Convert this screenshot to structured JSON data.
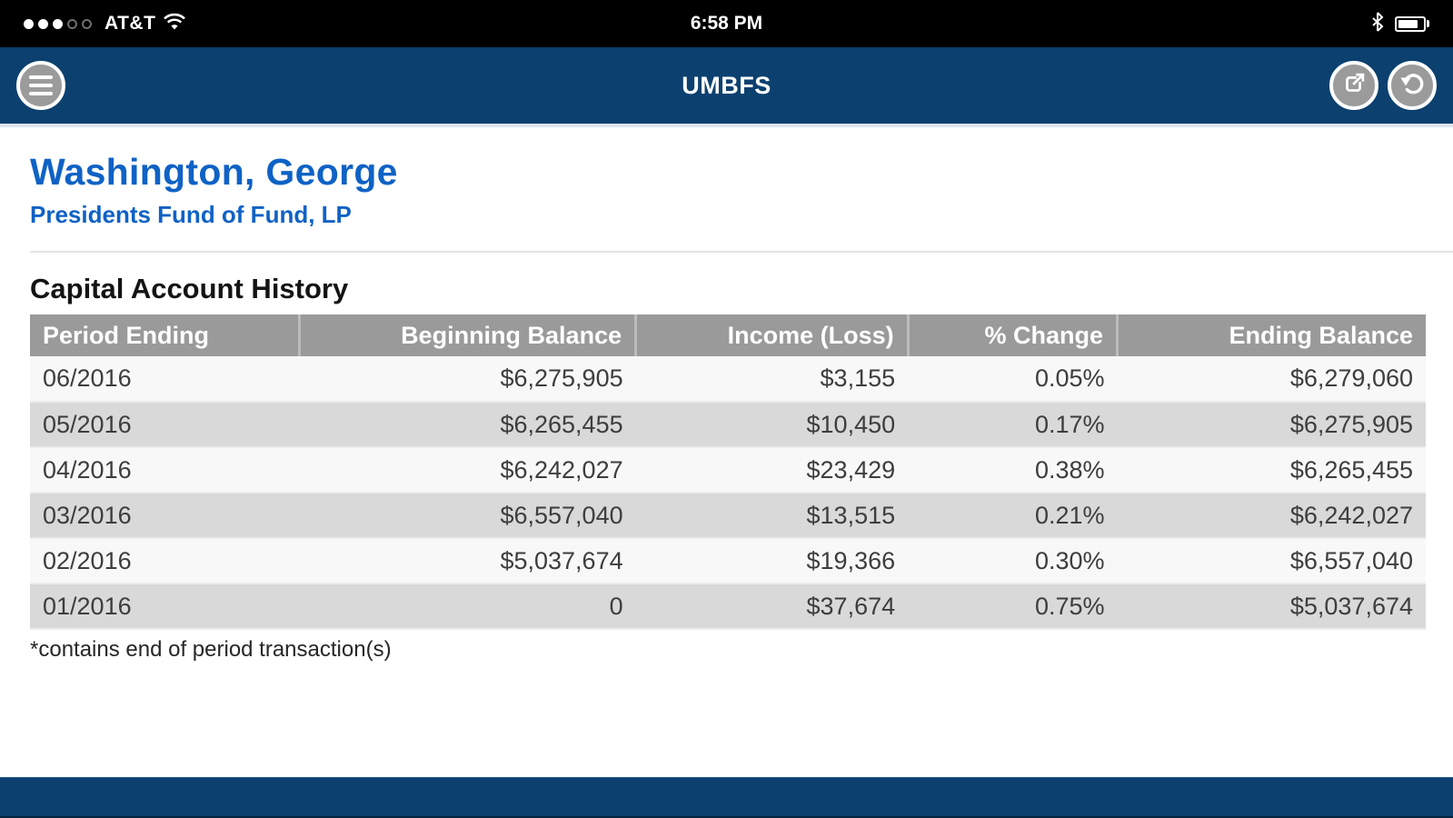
{
  "status_bar": {
    "carrier": "AT&T",
    "time": "6:58 PM",
    "signal": {
      "filled": 3,
      "total": 5
    }
  },
  "nav_bar": {
    "title": "UMBFS"
  },
  "account": {
    "holder_name": "Washington, George",
    "fund_name": "Presidents Fund of Fund, LP"
  },
  "section": {
    "title": "Capital Account History",
    "footnote": "*contains end of period transaction(s)"
  },
  "table": {
    "columns": [
      "Period Ending",
      "Beginning Balance",
      "Income (Loss)",
      "% Change",
      "Ending Balance"
    ],
    "rows": [
      [
        "06/2016",
        "$6,275,905",
        "$3,155",
        "0.05%",
        "$6,279,060"
      ],
      [
        "05/2016",
        "$6,265,455",
        "$10,450",
        "0.17%",
        "$6,275,905"
      ],
      [
        "04/2016",
        "$6,242,027",
        "$23,429",
        "0.38%",
        "$6,265,455"
      ],
      [
        "03/2016",
        "$6,557,040",
        "$13,515",
        "0.21%",
        "$6,242,027"
      ],
      [
        "02/2016",
        "$5,037,674",
        "$19,366",
        "0.30%",
        "$6,557,040"
      ],
      [
        "01/2016",
        "0",
        "$37,674",
        "0.75%",
        "$5,037,674"
      ]
    ]
  },
  "colors": {
    "navy": "#0b406f",
    "link_blue": "#0f62c5",
    "table_header_gray": "#9a9a9a",
    "row_light": "#f8f8f8",
    "row_dark": "#d9d9d9"
  }
}
